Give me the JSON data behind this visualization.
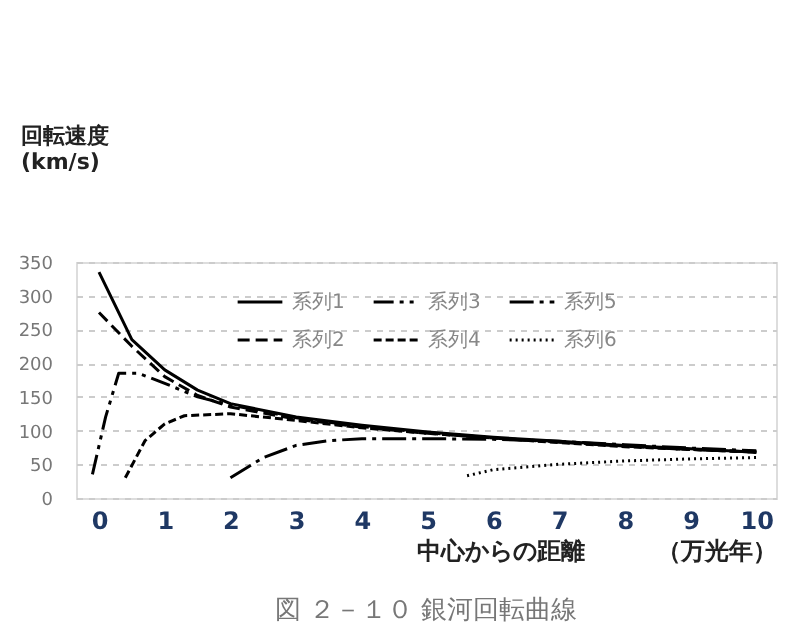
{
  "chart_data": {
    "type": "line",
    "ylabel": "回転速度\n(km/s)",
    "xlabel": "中心からの距離　　　（万光年）",
    "annotations": [
      "図 ２－１０ 銀河回転曲線"
    ],
    "xlim": [
      -0.35,
      10.3
    ],
    "xticks": [
      0,
      1,
      2,
      3,
      4,
      5,
      6,
      7,
      8,
      9,
      10
    ],
    "ylim": [
      0,
      350
    ],
    "yticks": [
      0,
      50,
      100,
      150,
      200,
      250,
      300,
      350
    ],
    "grid": "y",
    "legend": "top",
    "marker": "none",
    "series": [
      {
        "name": "系列1",
        "color": "#000000",
        "line_style": "solid",
        "x": [
          0,
          0.5,
          1,
          1.5,
          2,
          3,
          4,
          5,
          6,
          7,
          8,
          9,
          10
        ],
        "values": [
          335,
          235,
          190,
          160,
          140,
          120,
          108,
          98,
          90,
          84,
          78,
          73,
          68
        ]
      },
      {
        "name": "系列2",
        "color": "#000000",
        "line_style": "dashed",
        "x": [
          0,
          0.5,
          1,
          1.5,
          2,
          3,
          4,
          5,
          6,
          7,
          8,
          9,
          10
        ],
        "values": [
          275,
          225,
          180,
          152,
          135,
          117,
          105,
          96,
          89,
          83,
          77,
          72,
          68
        ]
      },
      {
        "name": "系列3",
        "color": "#000000",
        "line_style": "dashed",
        "x": [
          -0.1,
          0.1,
          0.3,
          0.6,
          1,
          1.5,
          2,
          3,
          4,
          5,
          6,
          7,
          8,
          9,
          10
        ],
        "values": [
          35,
          120,
          185,
          185,
          170,
          150,
          138,
          119,
          106,
          97,
          89,
          83,
          77,
          72,
          69
        ]
      },
      {
        "name": "系列4",
        "color": "#000000",
        "line_style": "dashed",
        "x": [
          0.4,
          0.7,
          1,
          1.3,
          2,
          3,
          4,
          5,
          6,
          7,
          8,
          9,
          10
        ],
        "values": [
          30,
          85,
          110,
          122,
          125,
          115,
          104,
          96,
          89,
          82,
          76,
          72,
          68
        ]
      },
      {
        "name": "系列5",
        "color": "#000000",
        "line_style": "dashed",
        "x": [
          2,
          2.5,
          3,
          3.5,
          4,
          5,
          6,
          7,
          8,
          9,
          10
        ],
        "values": [
          30,
          60,
          78,
          85,
          88,
          88,
          87,
          84,
          79,
          74,
          70
        ]
      },
      {
        "name": "系列6",
        "color": "#000000",
        "line_style": "dotted",
        "x": [
          5.6,
          6,
          7,
          8,
          9,
          10
        ],
        "values": [
          33,
          42,
          50,
          55,
          58,
          60
        ]
      }
    ]
  }
}
